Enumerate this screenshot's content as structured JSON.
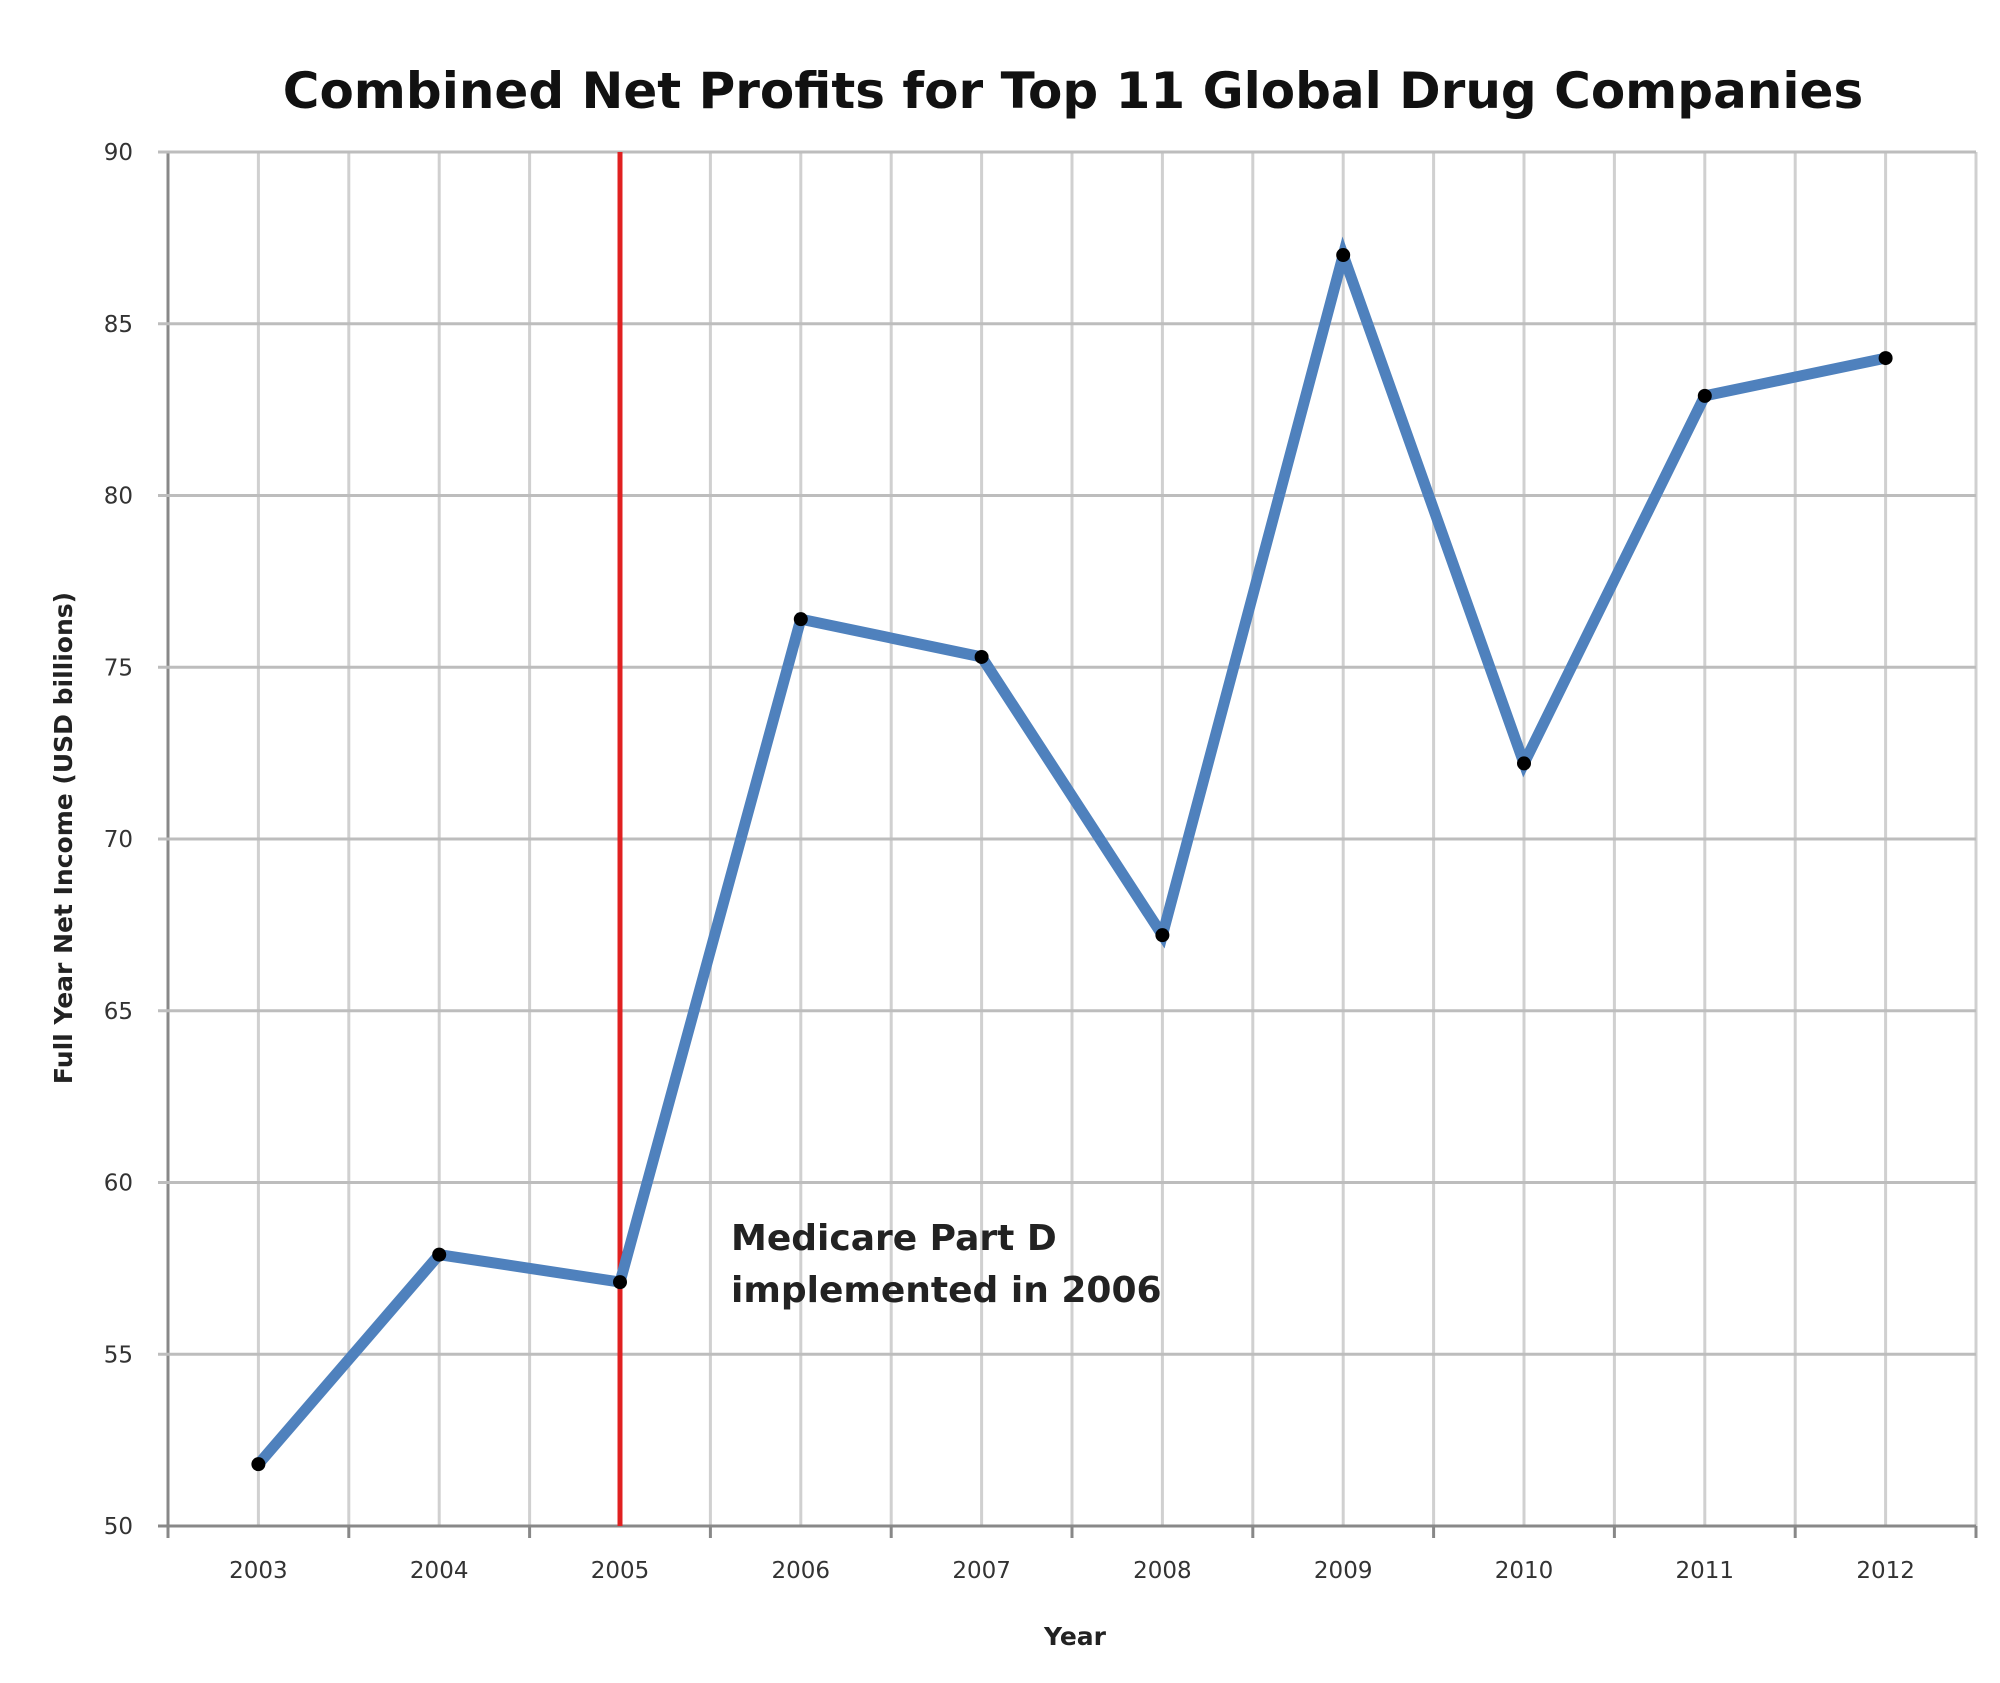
{
  "chart_data": {
    "type": "line",
    "title": "Combined Net Profits for Top 11 Global Drug Companies",
    "xlabel": "Year",
    "ylabel": "Full Year Net Income (USD billions)",
    "categories": [
      "2003",
      "2004",
      "2005",
      "2006",
      "2007",
      "2008",
      "2009",
      "2010",
      "2011",
      "2012"
    ],
    "series": [
      {
        "name": "Net Income",
        "values": [
          51.8,
          57.9,
          57.1,
          76.4,
          75.3,
          67.2,
          87.0,
          72.2,
          82.9,
          84.0
        ],
        "color": "#4f81bd"
      }
    ],
    "ylim": [
      50,
      90
    ],
    "yticks": [
      50,
      55,
      60,
      65,
      70,
      75,
      80,
      85,
      90
    ],
    "grid": true,
    "marker_line": {
      "category": "2005",
      "color": "#e02020"
    },
    "annotation": {
      "lines": [
        "Medicare Part D",
        "implemented in 2006"
      ]
    }
  }
}
